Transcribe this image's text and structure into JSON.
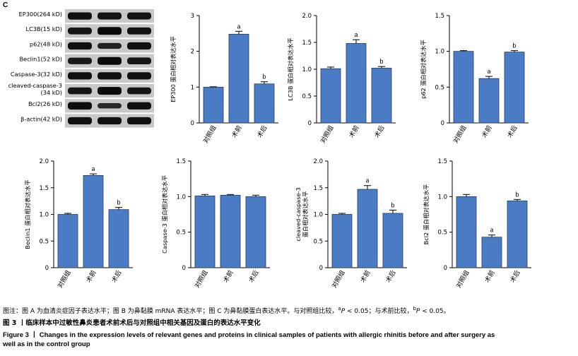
{
  "panel_label": "C",
  "blot": {
    "bands": [
      {
        "label": "EP300(264 kD)",
        "intensity": [
          0.9,
          0.85,
          0.85
        ]
      },
      {
        "label": "LC3B(15 kD)",
        "intensity": [
          0.8,
          1.0,
          0.85
        ]
      },
      {
        "label": "p62(48 kD)",
        "intensity": [
          0.9,
          0.6,
          0.9
        ]
      },
      {
        "label": "Beclin1(52 kD)",
        "intensity": [
          0.75,
          1.0,
          0.8
        ]
      },
      {
        "label": "Caspase-3(32 kD)",
        "intensity": [
          0.9,
          0.9,
          0.9
        ]
      },
      {
        "label": "cleaved-caspase-3\n(34 kD)",
        "intensity": [
          0.8,
          1.0,
          0.8
        ]
      },
      {
        "label": "Bcl2(26 kD)",
        "intensity": [
          0.95,
          0.5,
          0.9
        ]
      },
      {
        "label": "β-actin(42 kD)",
        "intensity": [
          0.9,
          0.9,
          0.9
        ]
      }
    ]
  },
  "colors": {
    "bar": "#4a7cc6",
    "bar_stroke": "#2a3b55",
    "axis": "#000000"
  },
  "chart_data": [
    {
      "type": "bar",
      "ylabel": "EP300 蛋白相对表达水平",
      "categories": [
        "对照组",
        "术前",
        "术后"
      ],
      "values": [
        1.0,
        2.48,
        1.09
      ],
      "errors": [
        0.01,
        0.08,
        0.06
      ],
      "annotations": [
        "",
        "a",
        "b"
      ],
      "ylim": [
        0,
        3
      ],
      "yticks": [
        0,
        1,
        2,
        3
      ],
      "ytick_labels": [
        "0",
        "1",
        "2",
        "3"
      ]
    },
    {
      "type": "bar",
      "ylabel": "LC3B 蛋白相对表达水平",
      "categories": [
        "对照组",
        "术前",
        "术后"
      ],
      "values": [
        1.01,
        1.48,
        1.02
      ],
      "errors": [
        0.03,
        0.07,
        0.03
      ],
      "annotations": [
        "",
        "a",
        "b"
      ],
      "ylim": [
        0,
        2
      ],
      "yticks": [
        0,
        0.5,
        1,
        1.5,
        2
      ],
      "ytick_labels": [
        "0",
        "0.5",
        "1.0",
        "1.5",
        "2.0"
      ]
    },
    {
      "type": "bar",
      "ylabel": "p62 蛋白相对表达水平",
      "categories": [
        "对照组",
        "术前",
        "术后"
      ],
      "values": [
        1.0,
        0.62,
        0.99
      ],
      "errors": [
        0.01,
        0.03,
        0.02
      ],
      "annotations": [
        "",
        "a",
        "b"
      ],
      "ylim": [
        0,
        1.5
      ],
      "yticks": [
        0,
        0.5,
        1,
        1.5
      ],
      "ytick_labels": [
        "0",
        "0.5",
        "1.0",
        "1.5"
      ]
    },
    {
      "type": "bar",
      "ylabel": "Beclin1 蛋白相对表达水平",
      "categories": [
        "对照组",
        "术前",
        "术后"
      ],
      "values": [
        1.0,
        1.73,
        1.09
      ],
      "errors": [
        0.02,
        0.03,
        0.04
      ],
      "annotations": [
        "",
        "a",
        "b"
      ],
      "ylim": [
        0,
        2
      ],
      "yticks": [
        0,
        0.5,
        1,
        1.5,
        2
      ],
      "ytick_labels": [
        "0",
        "0.5",
        "1.0",
        "1.5",
        "2.0"
      ]
    },
    {
      "type": "bar",
      "ylabel": "Caspase-3 蛋白相对表达水平",
      "categories": [
        "对照组",
        "术前",
        "术后"
      ],
      "values": [
        1.01,
        1.02,
        1.0
      ],
      "errors": [
        0.02,
        0.01,
        0.02
      ],
      "annotations": [
        "",
        "",
        ""
      ],
      "ylim": [
        0,
        1.5
      ],
      "yticks": [
        0,
        0.5,
        1,
        1.5
      ],
      "ytick_labels": [
        "0",
        "0.5",
        "1.0",
        "1.5"
      ]
    },
    {
      "type": "bar",
      "ylabel": "cleaved-caspase-3\n蛋白相对表达水平",
      "categories": [
        "对照组",
        "术前",
        "术后"
      ],
      "values": [
        1.0,
        1.47,
        1.02
      ],
      "errors": [
        0.02,
        0.07,
        0.06
      ],
      "annotations": [
        "",
        "a",
        "b"
      ],
      "ylim": [
        0,
        2
      ],
      "yticks": [
        0,
        0.5,
        1,
        1.5,
        2
      ],
      "ytick_labels": [
        "0",
        "0.5",
        "1.0",
        "1.5",
        "2.0"
      ]
    },
    {
      "type": "bar",
      "ylabel": "Bcl2 蛋白相对表达水平",
      "categories": [
        "对照组",
        "术前",
        "术后"
      ],
      "values": [
        1.0,
        0.43,
        0.94
      ],
      "errors": [
        0.03,
        0.03,
        0.02
      ],
      "annotations": [
        "",
        "a",
        "b"
      ],
      "ylim": [
        0,
        1.5
      ],
      "yticks": [
        0,
        0.5,
        1,
        1.5
      ],
      "ytick_labels": [
        "0",
        "0.5",
        "1.0",
        "1.5"
      ]
    }
  ],
  "caption": {
    "note_prefix": "图注：图 A 为血清炎症因子表达水平；图 B 为鼻黏膜 mRNA 表达水平；图 C 为鼻黏膜蛋白表达水平。与对照组比较，",
    "note_a_sup": "a",
    "note_a_p": "P",
    "note_a_rest": " < 0.05；与术前比较，",
    "note_b_sup": "b",
    "note_b_p": "P",
    "note_b_rest": " < 0.05。",
    "zh_title": "图 3 丨临床样本中过敏性鼻炎患者术前术后与对照组中相关基因及蛋白的表达水平变化",
    "en_line1": "Figure 3 丨 Changes in the expression levels of relevant genes and proteins in clinical samples of patients with allergic rhinitis before and after surgery as",
    "en_line2": "well as in the control group"
  }
}
